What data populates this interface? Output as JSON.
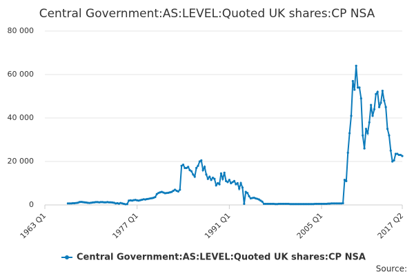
{
  "chart_data": {
    "type": "line",
    "title": "Central Government:AS:LEVEL:Quoted UK shares:CP NSA",
    "source": "Source:",
    "categories": [
      "1963 Q1",
      null,
      null,
      null,
      null,
      null,
      null,
      null,
      null,
      null,
      null,
      null,
      null,
      null,
      null,
      null,
      null,
      null,
      null,
      null,
      null,
      null,
      null,
      null,
      null,
      null,
      null,
      null,
      null,
      null,
      null,
      null,
      null,
      null,
      null,
      null,
      null,
      null,
      null,
      null,
      null,
      null,
      null,
      null,
      null,
      null,
      null,
      null,
      null,
      null,
      null,
      null,
      null,
      null,
      null,
      null,
      "1977 Q1",
      null,
      null,
      null,
      null,
      null,
      null,
      null,
      null,
      null,
      null,
      null,
      null,
      null,
      null,
      null,
      null,
      null,
      null,
      null,
      null,
      null,
      null,
      null,
      null,
      null,
      null,
      null,
      null,
      null,
      null,
      null,
      null,
      null,
      null,
      null,
      null,
      null,
      null,
      null,
      null,
      null,
      null,
      null,
      null,
      null,
      null,
      null,
      null,
      null,
      null,
      null,
      null,
      null,
      null,
      null,
      "1991 Q1",
      null,
      null,
      null,
      null,
      null,
      null,
      null,
      null,
      null,
      null,
      null,
      null,
      null,
      null,
      null,
      null,
      null,
      null,
      null,
      null,
      null,
      null,
      null,
      null,
      null,
      null,
      null,
      null,
      null,
      null,
      null,
      null,
      null,
      null,
      null,
      null,
      null,
      null,
      null,
      null,
      null,
      null,
      null,
      null,
      null,
      null,
      null,
      null,
      null,
      null,
      null,
      null,
      null,
      null,
      null,
      "2005 Q1",
      null,
      null,
      null,
      null,
      null,
      null,
      null,
      null,
      null,
      null,
      null,
      null,
      null,
      null,
      null,
      null,
      null,
      null,
      null,
      null,
      null,
      null,
      null,
      null,
      null,
      null,
      null,
      null,
      null,
      null,
      null,
      null,
      null,
      null,
      null,
      null,
      null,
      null,
      null,
      null,
      null,
      null,
      null,
      null,
      null,
      null,
      null,
      null,
      "2017 Q2"
    ],
    "series": [
      {
        "name": "Central Government:AS:LEVEL:Quoted UK shares:CP NSA",
        "color": "#0c7bbb",
        "values": [
          null,
          null,
          null,
          null,
          null,
          null,
          null,
          null,
          null,
          null,
          null,
          null,
          null,
          null,
          700,
          700,
          700,
          800,
          800,
          900,
          1000,
          1300,
          1400,
          1300,
          1200,
          1100,
          1000,
          900,
          1000,
          1100,
          1200,
          1300,
          1300,
          1200,
          1300,
          1300,
          1200,
          1200,
          1300,
          1200,
          1200,
          1100,
          1000,
          700,
          800,
          600,
          900,
          700,
          500,
          300,
          400,
          2000,
          2100,
          2000,
          2200,
          2300,
          2100,
          2000,
          2200,
          2400,
          2600,
          2500,
          2700,
          2800,
          3000,
          3100,
          3300,
          3600,
          5000,
          5500,
          5800,
          6000,
          5700,
          5400,
          5500,
          5600,
          5800,
          6000,
          6500,
          7000,
          6500,
          6200,
          7000,
          18000,
          18500,
          17000,
          17000,
          17500,
          16000,
          15500,
          14000,
          13000,
          17000,
          18000,
          20000,
          20500,
          16000,
          17500,
          14000,
          12000,
          13000,
          11500,
          12500,
          12000,
          9000,
          10000,
          9500,
          14500,
          12000,
          14800,
          11000,
          10500,
          11500,
          10000,
          10500,
          11000,
          9500,
          10000,
          7500,
          10000,
          8000,
          500,
          6000,
          5500,
          4000,
          3000,
          3200,
          3300,
          3000,
          2800,
          2500,
          2000,
          1500,
          500,
          500,
          500,
          500,
          500,
          500,
          500,
          400,
          400,
          500,
          500,
          500,
          500,
          500,
          500,
          500,
          400,
          400,
          400,
          400,
          400,
          400,
          400,
          400,
          400,
          400,
          400,
          400,
          400,
          400,
          400,
          500,
          500,
          500,
          500,
          500,
          500,
          500,
          500,
          600,
          600,
          700,
          700,
          700,
          700,
          700,
          700,
          700,
          800,
          11500,
          11000,
          24000,
          33000,
          41000,
          57000,
          53000,
          64000,
          54000,
          54000,
          49000,
          32000,
          26000,
          35000,
          33000,
          38000,
          46000,
          41000,
          44000,
          51000,
          52000,
          45000,
          47000,
          52500,
          48000,
          45000,
          35000,
          32000,
          25000,
          20000,
          20500,
          23500,
          23500,
          23000,
          23000,
          22500
        ]
      }
    ],
    "ylim": [
      0,
      80000
    ],
    "yticks": [
      0,
      {
        "value": 20000,
        "label": "20 000"
      },
      {
        "value": 40000,
        "label": "40 000"
      },
      {
        "value": 60000,
        "label": "60 000"
      },
      {
        "value": 80000,
        "label": "80 000"
      }
    ],
    "grid": true
  }
}
